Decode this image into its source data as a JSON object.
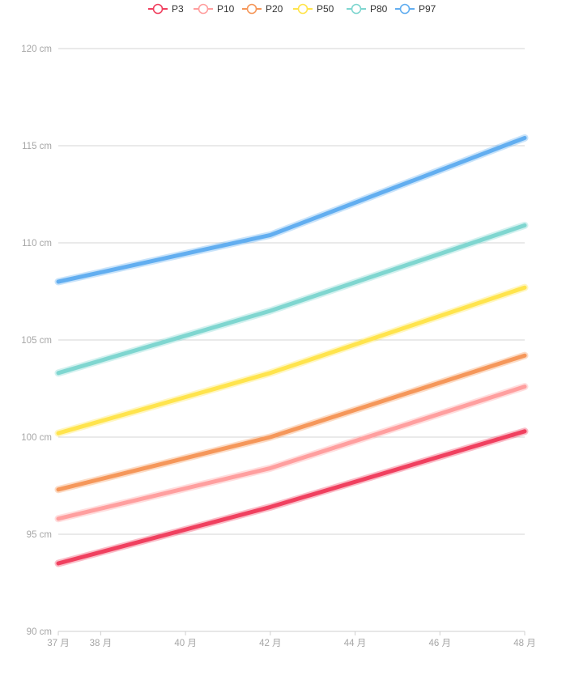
{
  "chart_data": {
    "type": "line",
    "title": "",
    "xlabel": "",
    "ylabel": "",
    "x": [
      37,
      42,
      48
    ],
    "x_ticks": [
      {
        "value": 37,
        "label": "37 月"
      },
      {
        "value": 38,
        "label": "38 月"
      },
      {
        "value": 40,
        "label": "40 月"
      },
      {
        "value": 42,
        "label": "42 月"
      },
      {
        "value": 44,
        "label": "44 月"
      },
      {
        "value": 46,
        "label": "46 月"
      },
      {
        "value": 48,
        "label": "48 月"
      }
    ],
    "y_ticks": [
      {
        "value": 90,
        "label": "90 cm"
      },
      {
        "value": 95,
        "label": "95 cm"
      },
      {
        "value": 100,
        "label": "100 cm"
      },
      {
        "value": 105,
        "label": "105 cm"
      },
      {
        "value": 110,
        "label": "110 cm"
      },
      {
        "value": 115,
        "label": "115 cm"
      },
      {
        "value": 120,
        "label": "120 cm"
      }
    ],
    "xlim": [
      37,
      48
    ],
    "ylim": [
      90,
      120
    ],
    "grid": true,
    "legend_position": "top-center",
    "series": [
      {
        "name": "P3",
        "color": "#f0405f",
        "values": [
          93.5,
          96.4,
          100.3
        ]
      },
      {
        "name": "P10",
        "color": "#ff9f9f",
        "values": [
          95.8,
          98.4,
          102.6
        ]
      },
      {
        "name": "P20",
        "color": "#f5975a",
        "values": [
          97.3,
          100.0,
          104.2
        ]
      },
      {
        "name": "P50",
        "color": "#ffe44d",
        "values": [
          100.2,
          103.3,
          107.7
        ]
      },
      {
        "name": "P80",
        "color": "#7fd6d0",
        "values": [
          103.3,
          106.5,
          110.9
        ]
      },
      {
        "name": "P97",
        "color": "#62aef0",
        "values": [
          108.0,
          110.4,
          115.4
        ]
      }
    ]
  }
}
